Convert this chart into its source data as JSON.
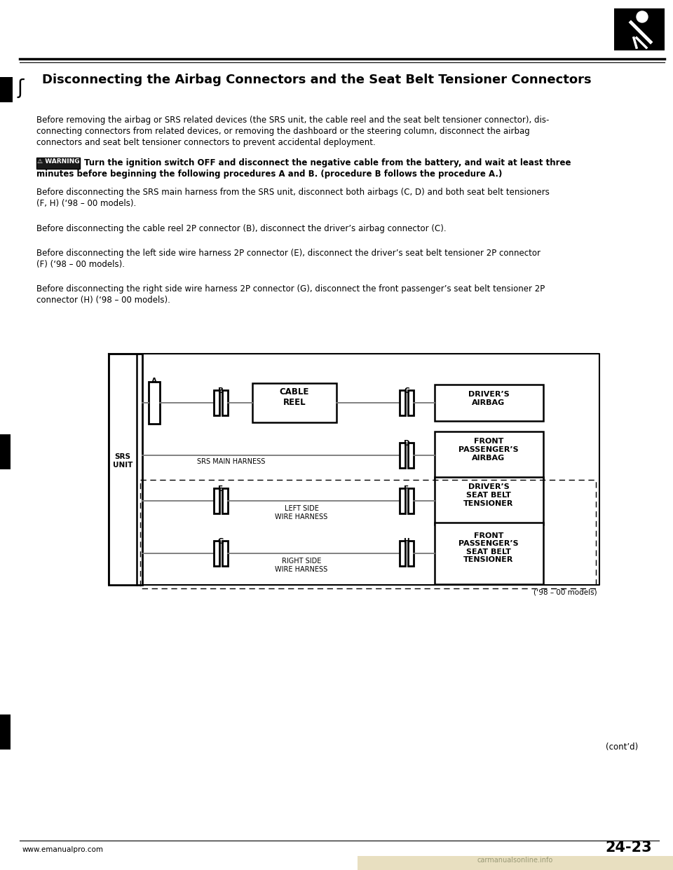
{
  "title": "Disconnecting the Airbag Connectors and the Seat Belt Tensioner Connectors",
  "bg_color": "#ffffff",
  "para1_line1": "Before removing the airbag or SRS related devices (the SRS unit, the cable reel and the seat belt tensioner connector), dis-",
  "para1_line2": "connecting connectors from related devices, or removing the dashboard or the steering column, disconnect the airbag",
  "para1_line3": "connectors and seat belt tensioner connectors to prevent accidental deployment.",
  "warning_text_line1": "Turn the ignition switch OFF and disconnect the negative cable from the battery, and wait at least three",
  "warning_text_line2": "minutes before beginning the following procedures A and B. (procedure B follows the procedure A.)",
  "para2_line1": "Before disconnecting the SRS main harness from the SRS unit, disconnect both airbags (C, D) and both seat belt tensioners",
  "para2_line2": "(F, H) (‘98 – 00 models).",
  "para3": "Before disconnecting the cable reel 2P connector (B), disconnect the driver’s airbag connector (C).",
  "para4_line1": "Before disconnecting the left side wire harness 2P connector (E), disconnect the driver’s seat belt tensioner 2P connector",
  "para4_line2": "(F) (‘98 – 00 models).",
  "para5_line1": "Before disconnecting the right side wire harness 2P connector (G), disconnect the front passenger’s seat belt tensioner 2P",
  "para5_line2": "connector (H) (‘98 – 00 models).",
  "footer_left": "www.emanualpro.com",
  "footer_right": "24-23",
  "footer_note": "(cont’d)",
  "diagram_note": "(‘98 – 00 models)",
  "srs_unit_label": "SRS\nUNIT",
  "cable_reel_label": "CABLE\nREEL",
  "drivers_airbag_label": "DRIVER’S\nAIRBAG",
  "front_passenger_airbag_label": "FRONT\nPASSENGER’S\nAIRBAG",
  "drivers_sbt_label": "DRIVER’S\nSEAT BELT\nTENSIONER",
  "front_passenger_sbt_label": "FRONT\nPASSENGER’S\nSEAT BELT\nTENSIONER",
  "srs_main_harness_label": "SRS MAIN HARNESS",
  "left_side_label": "LEFT SIDE\nWIRE HARNESS",
  "right_side_label": "RIGHT SIDE\nWIRE HARNESS"
}
